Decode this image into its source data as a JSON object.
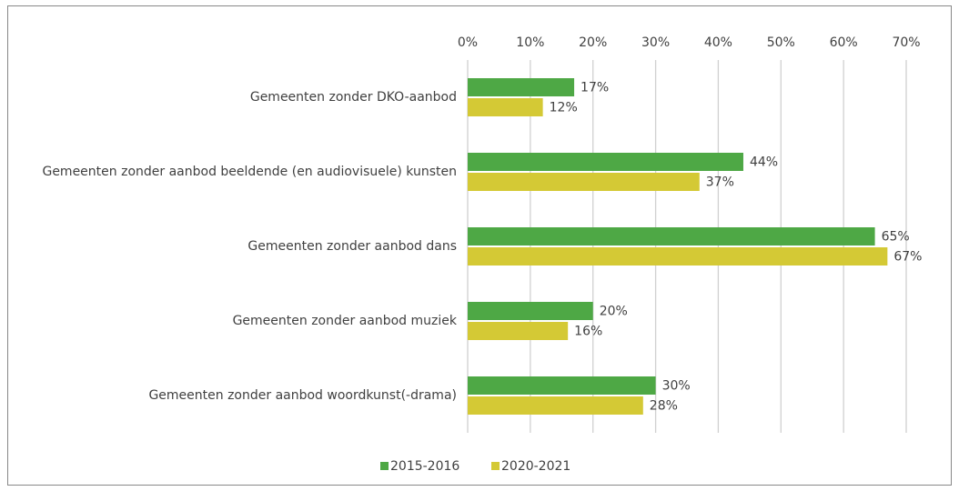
{
  "chart_data": {
    "type": "bar",
    "orientation": "horizontal",
    "categories": [
      "Gemeenten zonder DKO-aanbod",
      "Gemeenten zonder aanbod beeldende (en audiovisuele) kunsten",
      "Gemeenten zonder aanbod dans",
      "Gemeenten zonder aanbod muziek",
      "Gemeenten zonder aanbod woordkunst(-drama)"
    ],
    "series": [
      {
        "name": "2015-2016",
        "color": "#4ea845",
        "values": [
          17,
          44,
          65,
          20,
          30
        ],
        "value_labels": [
          "17%",
          "44%",
          "65%",
          "20%",
          "30%"
        ]
      },
      {
        "name": "2020-2021",
        "color": "#d4c935",
        "values": [
          12,
          37,
          67,
          16,
          28
        ],
        "value_labels": [
          "12%",
          "37%",
          "67%",
          "16%",
          "28%"
        ]
      }
    ],
    "xlim": [
      0,
      70
    ],
    "xticks": [
      {
        "value": 0,
        "label": "0%"
      },
      {
        "value": 10,
        "label": "10%"
      },
      {
        "value": 20,
        "label": "20%"
      },
      {
        "value": 30,
        "label": "30%"
      },
      {
        "value": 40,
        "label": "40%"
      },
      {
        "value": 50,
        "label": "50%"
      },
      {
        "value": 60,
        "label": "60%"
      },
      {
        "value": 70,
        "label": "70%"
      }
    ],
    "grid": true,
    "legend": "bottom"
  }
}
